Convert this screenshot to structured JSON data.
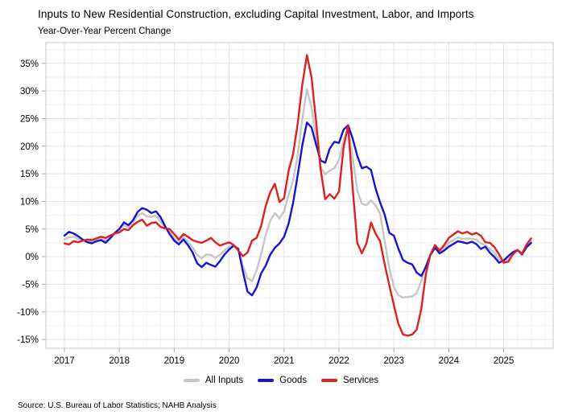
{
  "title": "Inputs to New Residential Construction, excluding Capital Investment, Labor, and Imports",
  "subtitle": "Year-Over-Year Percent Change",
  "source": "Source: U.S. Bureau of Labor Statistics; NAHB Analysis",
  "colors": {
    "all_inputs": "#c6c6c6",
    "goods": "#1414d2",
    "services": "#e01f1f",
    "grid_major": "#e3e3e3",
    "grid_minor": "#f2f2f2",
    "border": "#c9c9c9",
    "tick": "#a8a8a8",
    "text": "#000000"
  },
  "legend": [
    {
      "label": "All Inputs",
      "color_key": "all_inputs"
    },
    {
      "label": "Goods",
      "color_key": "goods"
    },
    {
      "label": "Services",
      "color_key": "services"
    }
  ],
  "chart_data": {
    "type": "line",
    "frequency": "monthly",
    "x_start": "2017-01",
    "x_end": "2025-07",
    "x_tick_labels": [
      "2017",
      "2018",
      "2019",
      "2020",
      "2021",
      "2022",
      "2023",
      "2024",
      "2025"
    ],
    "y_ticks": [
      35,
      30,
      25,
      20,
      15,
      10,
      5,
      0,
      -5,
      -10,
      -15
    ],
    "y_unit": "%",
    "ylim": [
      -16.6,
      38.9
    ],
    "grid": true,
    "legend_position": "bottom",
    "series": [
      {
        "name": "All Inputs",
        "color_key": "all_inputs",
        "values": [
          3.1,
          3.5,
          3.6,
          3.2,
          3.0,
          2.8,
          2.7,
          3.0,
          3.2,
          2.9,
          3.5,
          4.2,
          4.7,
          5.7,
          5.3,
          6.2,
          7.4,
          7.9,
          7.3,
          7.2,
          7.4,
          6.4,
          5.3,
          4.5,
          3.4,
          2.6,
          3.5,
          2.7,
          1.7,
          0.3,
          -0.3,
          0.4,
          0.3,
          -0.2,
          0.3,
          1.1,
          1.8,
          2.0,
          1.3,
          -1.6,
          -3.9,
          -4.4,
          -2.5,
          0.5,
          4.0,
          6.5,
          7.9,
          6.9,
          8.2,
          11.2,
          13.8,
          18.5,
          25.0,
          30.3,
          27.0,
          21.5,
          16.2,
          14.9,
          15.6,
          16.0,
          17.5,
          21.0,
          23.2,
          18.0,
          12.0,
          9.6,
          9.3,
          10.2,
          9.3,
          7.8,
          2.8,
          -2.1,
          -5.5,
          -7.0,
          -7.4,
          -7.3,
          -7.2,
          -6.6,
          -4.4,
          -1.6,
          0.4,
          1.8,
          0.8,
          1.5,
          2.5,
          3.0,
          3.5,
          3.2,
          3.3,
          3.2,
          3.1,
          2.4,
          2.1,
          1.4,
          0.7,
          -0.5,
          -0.9,
          -0.5,
          0.6,
          1.2,
          0.5,
          1.9,
          2.9
        ]
      },
      {
        "name": "Goods",
        "color_key": "goods",
        "values": [
          3.8,
          4.5,
          4.2,
          3.7,
          3.1,
          2.6,
          2.4,
          2.8,
          3.0,
          2.5,
          3.3,
          4.3,
          5.0,
          6.2,
          5.7,
          6.6,
          8.1,
          8.8,
          8.5,
          7.9,
          8.2,
          7.2,
          5.5,
          4.1,
          2.9,
          2.2,
          3.1,
          2.1,
          0.8,
          -1.2,
          -1.9,
          -1.1,
          -1.5,
          -1.8,
          -0.8,
          0.4,
          1.3,
          2.0,
          1.4,
          -2.6,
          -6.3,
          -7.0,
          -5.6,
          -3.0,
          -1.6,
          0.4,
          1.6,
          2.4,
          3.6,
          6.0,
          9.8,
          14.8,
          20.2,
          24.3,
          23.4,
          20.3,
          17.4,
          17.0,
          19.6,
          20.8,
          20.6,
          23.0,
          23.8,
          21.4,
          18.3,
          16.0,
          16.3,
          15.7,
          12.4,
          9.8,
          7.6,
          4.3,
          3.8,
          1.4,
          -0.6,
          -1.1,
          -1.4,
          -2.9,
          -3.5,
          -1.8,
          0.3,
          1.6,
          0.6,
          1.1,
          1.8,
          2.3,
          2.8,
          2.6,
          2.4,
          2.7,
          2.3,
          1.4,
          1.8,
          0.7,
          -0.1,
          -1.1,
          -0.7,
          0.1,
          0.8,
          1.2,
          0.4,
          1.7,
          2.5
        ]
      },
      {
        "name": "Services",
        "color_key": "services",
        "values": [
          2.4,
          2.2,
          2.8,
          2.6,
          2.9,
          3.1,
          3.0,
          3.3,
          3.6,
          3.4,
          3.8,
          4.2,
          4.4,
          5.0,
          4.8,
          5.7,
          6.3,
          6.7,
          5.6,
          6.1,
          6.2,
          5.4,
          5.1,
          5.0,
          4.1,
          3.1,
          4.1,
          3.6,
          3.0,
          2.7,
          2.5,
          2.9,
          3.4,
          2.6,
          2.0,
          2.3,
          2.6,
          2.1,
          1.1,
          0.1,
          0.7,
          2.9,
          3.4,
          5.6,
          9.2,
          11.7,
          13.2,
          9.9,
          10.6,
          15.6,
          18.6,
          24.2,
          31.2,
          36.5,
          32.5,
          24.5,
          15.8,
          10.4,
          11.3,
          10.5,
          11.8,
          19.8,
          23.7,
          12.5,
          2.5,
          0.6,
          2.4,
          6.2,
          4.2,
          2.8,
          -1.4,
          -5.2,
          -8.8,
          -12.2,
          -14.1,
          -14.3,
          -14.1,
          -13.2,
          -9.4,
          -3.1,
          0.4,
          2.1,
          1.1,
          2.1,
          3.4,
          4.0,
          4.6,
          4.2,
          4.5,
          4.0,
          4.3,
          3.8,
          2.6,
          2.5,
          1.7,
          0.4,
          -1.1,
          -0.9,
          0.4,
          1.2,
          0.5,
          2.2,
          3.3
        ]
      }
    ]
  }
}
